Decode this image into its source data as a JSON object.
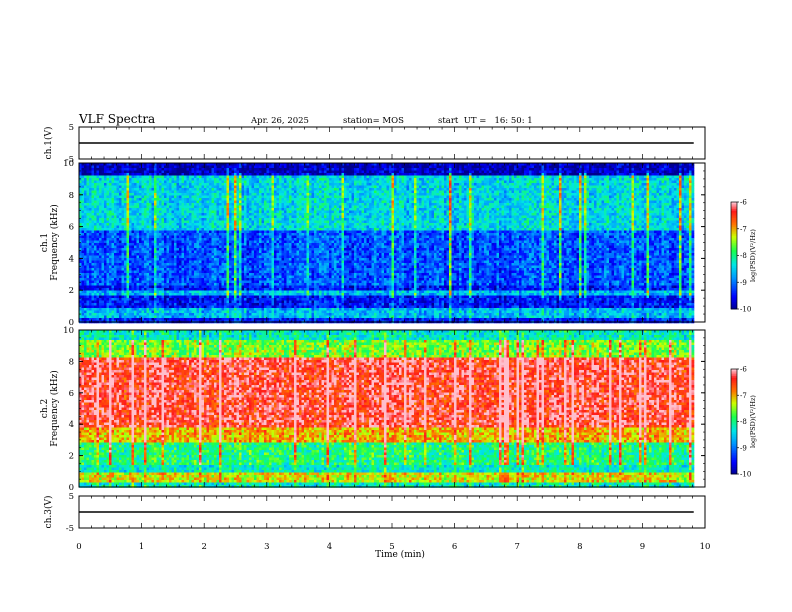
{
  "header": {
    "title": "VLF Spectra",
    "date": "Apr. 26, 2025",
    "station": "station= MOS",
    "start_ut": "start  UT =   16: 50: 1"
  },
  "chart_data": [
    {
      "type": "line",
      "name": "ch1-voltage",
      "ylabel": "ch.1(V)",
      "ylim": [
        -5,
        5
      ],
      "yticks": [
        "5",
        "-5"
      ],
      "trace": {
        "y": 0
      }
    },
    {
      "type": "heatmap",
      "name": "ch1-spectrogram",
      "ylabel": "ch.1\nFrequency (kHz)",
      "ylim": [
        0,
        10
      ],
      "yticks": [
        "0",
        "2",
        "4",
        "6",
        "8",
        "10"
      ],
      "colorbar": {
        "label": "log(PSD)(V²/Hz)",
        "range": [
          -10,
          -6
        ],
        "ticks": [
          "-6",
          "-7",
          "-8",
          "-9",
          "-10"
        ]
      }
    },
    {
      "type": "heatmap",
      "name": "ch2-spectrogram",
      "ylabel": "ch.2\nFrequency (kHz)",
      "ylim": [
        0,
        10
      ],
      "yticks": [
        "0",
        "2",
        "4",
        "6",
        "8",
        "10"
      ],
      "colorbar": {
        "label": "log(PSD)(V²/Hz)",
        "range": [
          -10,
          -6
        ],
        "ticks": [
          "-6",
          "-7",
          "-8",
          "-9",
          "-10"
        ]
      }
    },
    {
      "type": "line",
      "name": "ch3-voltage",
      "ylabel": "ch.3(V)",
      "ylim": [
        -5,
        5
      ],
      "yticks": [
        "5",
        "-5"
      ],
      "trace": {
        "y": 0
      }
    }
  ],
  "x_axis": {
    "label": "Time (min)",
    "range": [
      0,
      10
    ],
    "ticks": [
      "0",
      "1",
      "2",
      "3",
      "4",
      "5",
      "6",
      "7",
      "8",
      "9",
      "10"
    ],
    "data_end": 9.82
  }
}
